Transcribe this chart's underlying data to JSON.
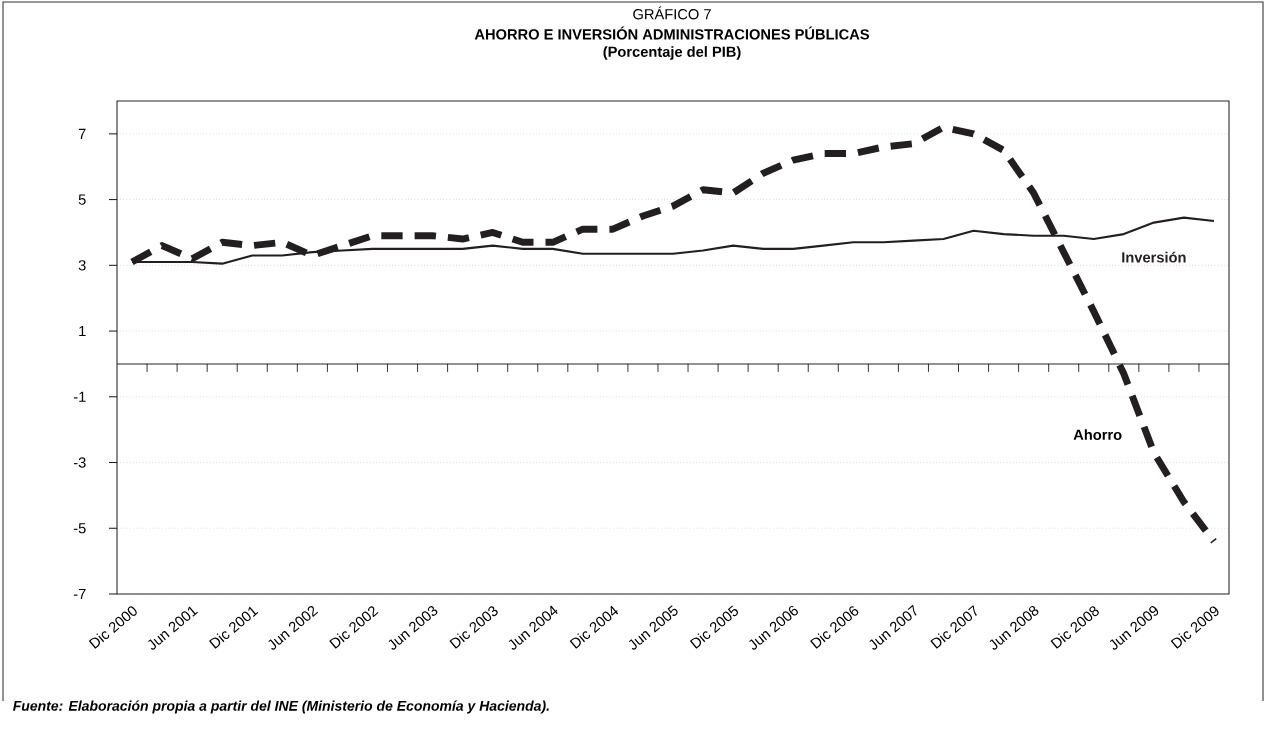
{
  "chart_data": {
    "type": "line",
    "title": "AHORRO E INVERSIÓN ADMINISTRACIONES PÚBLICAS",
    "subtitle": "(Porcentaje del PIB)",
    "annotations": [
      "GRÁFICO 7",
      "Fuente: Elaboración propia a partir del INE (Ministerio de Economía y Hacienda)."
    ],
    "categories": [
      "Dic 2000",
      null,
      "Jun 2001",
      null,
      "Dic 2001",
      null,
      "Jun 2002",
      null,
      "Dic 2002",
      null,
      "Jun 2003",
      null,
      "Dic 2003",
      null,
      "Jun 2004",
      null,
      "Dic 2004",
      null,
      "Jun 2005",
      null,
      "Dic 2005",
      null,
      "Jun 2006",
      null,
      "Dic 2006",
      null,
      "Jun 2007",
      null,
      "Dic 2007",
      null,
      "Jun 2008",
      null,
      "Dic 2008",
      null,
      "Jun 2009",
      null,
      "Dic 2009"
    ],
    "series": [
      {
        "name": "Ahorro",
        "color": "#231f20",
        "line_style": "dashed",
        "values": [
          3.1,
          3.6,
          3.2,
          3.7,
          3.6,
          3.7,
          3.3,
          3.6,
          3.9,
          3.9,
          3.9,
          3.8,
          4.0,
          3.7,
          3.7,
          4.1,
          4.1,
          4.5,
          4.8,
          5.3,
          5.2,
          5.8,
          6.2,
          6.4,
          6.4,
          6.6,
          6.7,
          7.2,
          7.0,
          6.5,
          5.2,
          3.4,
          1.6,
          -0.3,
          -2.7,
          -4.2,
          -5.4
        ]
      },
      {
        "name": "Inversión",
        "color": "#231f20",
        "line_style": "solid",
        "values": [
          3.1,
          3.1,
          3.1,
          3.05,
          3.3,
          3.3,
          3.4,
          3.45,
          3.5,
          3.5,
          3.5,
          3.5,
          3.6,
          3.5,
          3.5,
          3.35,
          3.35,
          3.35,
          3.35,
          3.45,
          3.6,
          3.5,
          3.5,
          3.6,
          3.7,
          3.7,
          3.75,
          3.8,
          4.05,
          3.95,
          3.9,
          3.9,
          3.8,
          3.95,
          4.3,
          4.45,
          4.35
        ]
      }
    ],
    "ylim": [
      -7,
      8
    ],
    "yticks": [
      -7,
      -5,
      -3,
      -1,
      1,
      3,
      5,
      7
    ],
    "grid": "y",
    "marker": "none"
  }
}
